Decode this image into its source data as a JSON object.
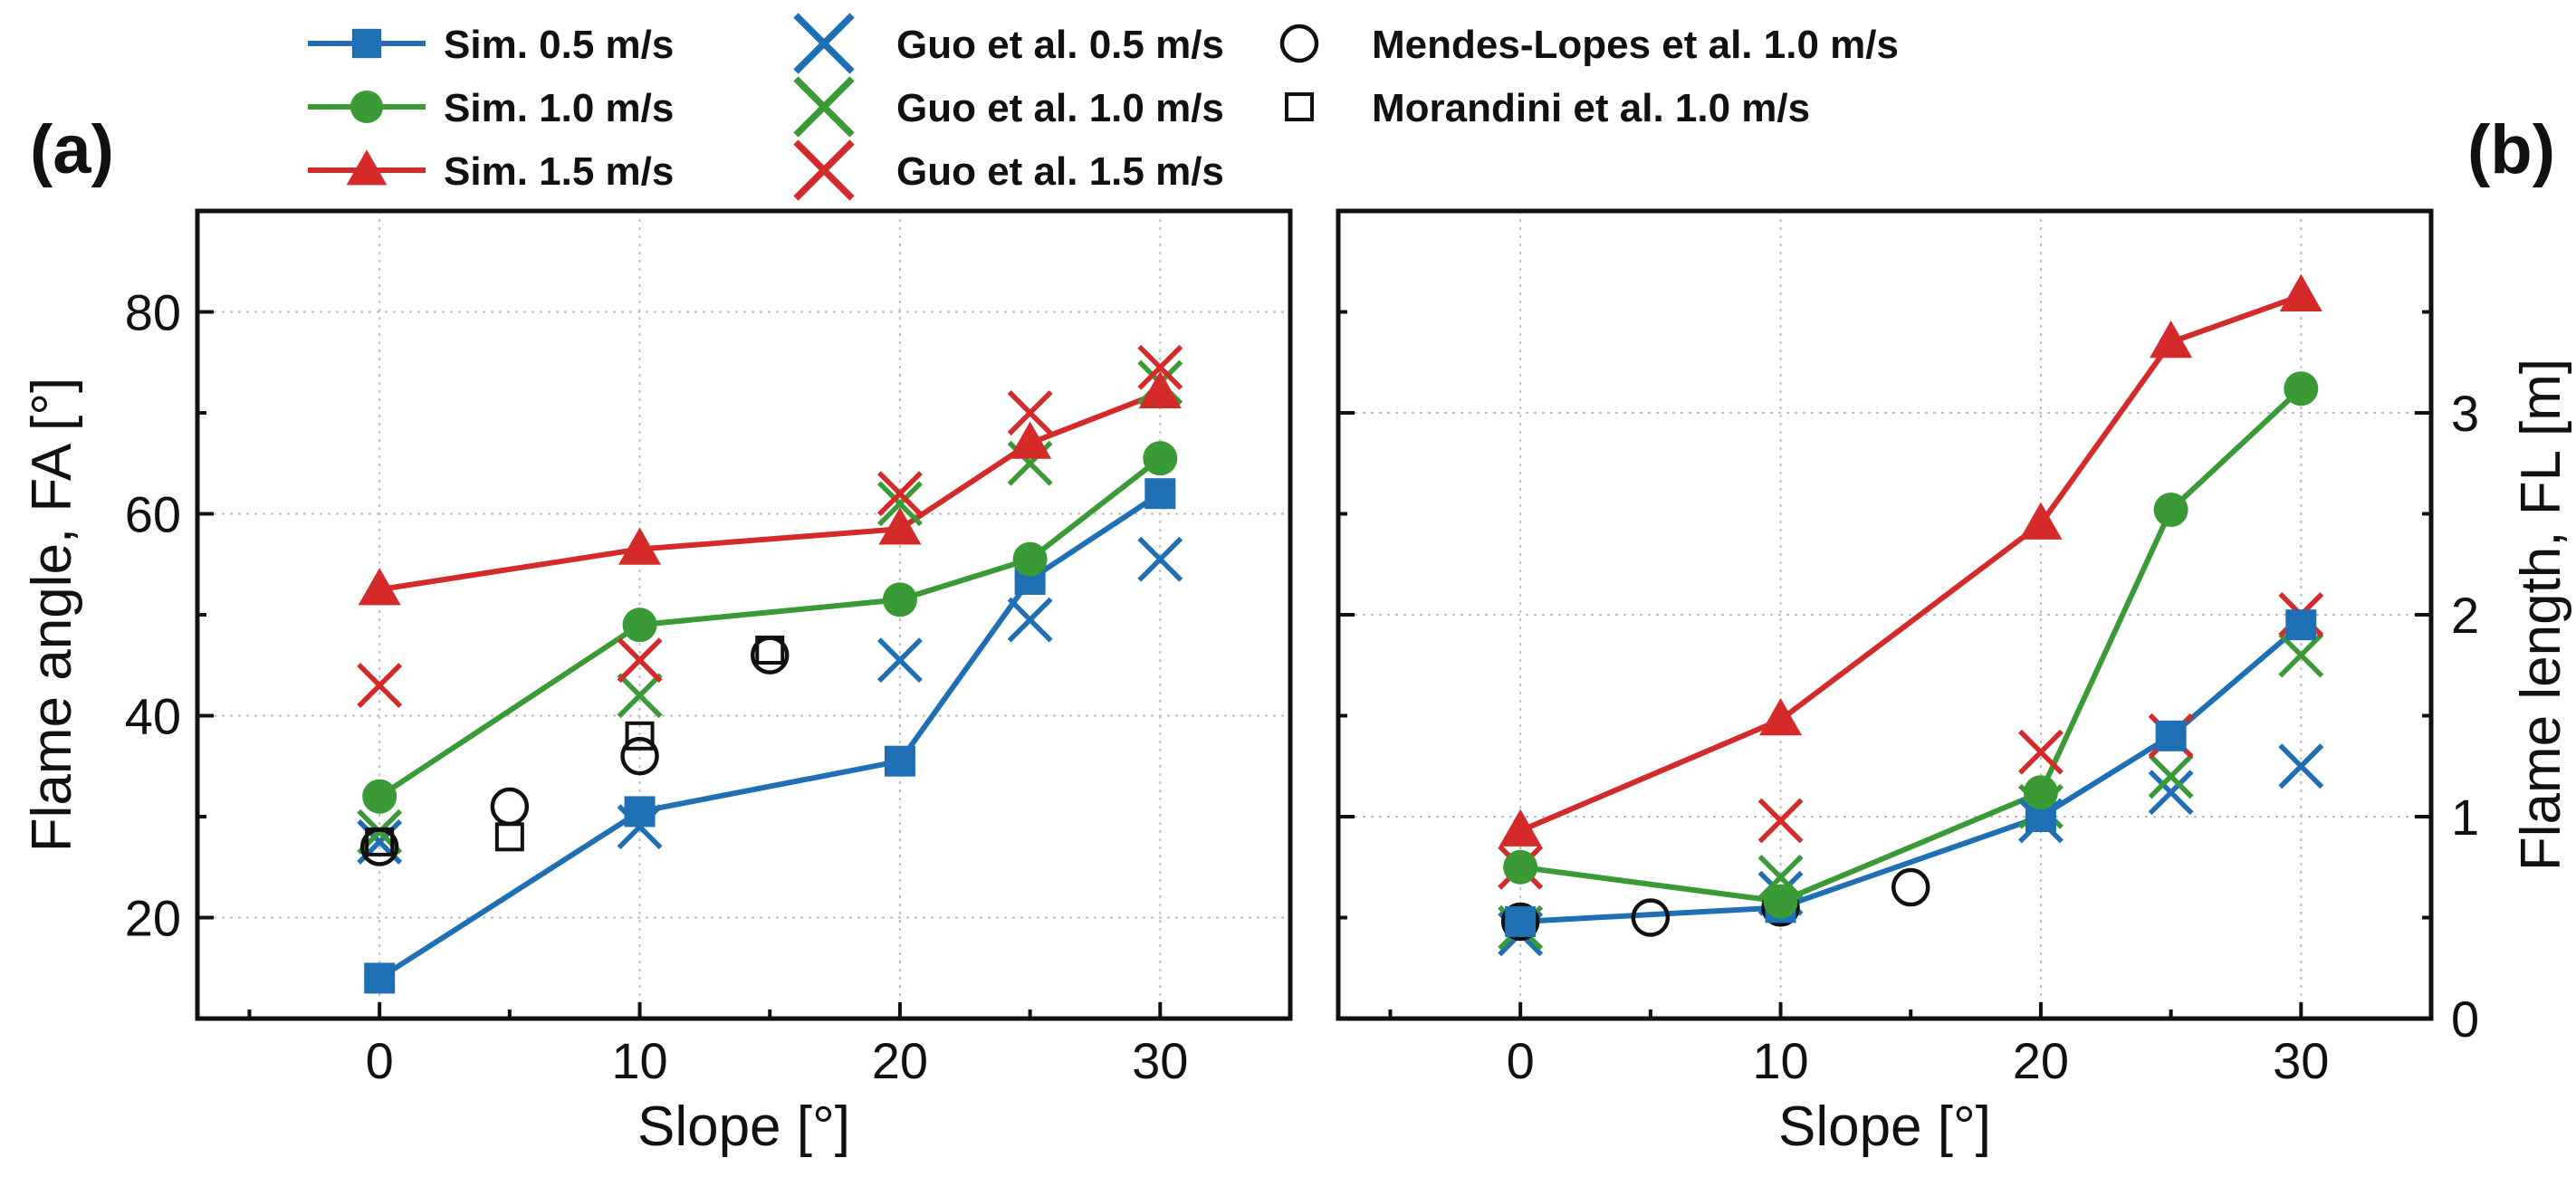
{
  "colors": {
    "blue": "#1f6fb4",
    "green": "#3a9a35",
    "red": "#d42a2a",
    "black": "#111111"
  },
  "legend": [
    {
      "label": "Sim. 0.5 m/s",
      "marker": "square",
      "color": "blue",
      "line": true
    },
    {
      "label": "Sim. 1.0 m/s",
      "marker": "circle",
      "color": "green",
      "line": true
    },
    {
      "label": "Sim. 1.5 m/s",
      "marker": "triangle",
      "color": "red",
      "line": true
    },
    {
      "label": "Guo et al.  0.5 m/s",
      "marker": "cross",
      "color": "blue",
      "line": false
    },
    {
      "label": "Guo et al. 1.0 m/s",
      "marker": "cross",
      "color": "green",
      "line": false
    },
    {
      "label": "Guo et al. 1.5 m/s",
      "marker": "cross",
      "color": "red",
      "line": false
    },
    {
      "label": "Mendes-Lopes et al. 1.0 m/s",
      "marker": "open-circle",
      "color": "black",
      "line": false
    },
    {
      "label": "Morandini et al. 1.0 m/s",
      "marker": "open-square",
      "color": "black",
      "line": false
    }
  ],
  "chart_data": [
    {
      "type": "line",
      "panel_label": "(a)",
      "xlabel": "Slope [°]",
      "ylabel": "Flame angle, FA [°]",
      "xlim": [
        -7,
        35
      ],
      "ylim": [
        10,
        90
      ],
      "xticks": [
        0,
        10,
        20,
        30
      ],
      "yticks": [
        20,
        40,
        60,
        80
      ],
      "y_axis_side": "left",
      "grid": true,
      "series": [
        {
          "name": "Sim. 0.5 m/s",
          "marker": "square",
          "color": "blue",
          "line": true,
          "x": [
            0,
            10,
            20,
            25,
            30
          ],
          "y": [
            14,
            30.5,
            35.5,
            53.5,
            62
          ]
        },
        {
          "name": "Sim. 1.0 m/s",
          "marker": "circle",
          "color": "green",
          "line": true,
          "x": [
            0,
            10,
            20,
            25,
            30
          ],
          "y": [
            32,
            49,
            51.5,
            55.5,
            65.5
          ]
        },
        {
          "name": "Sim. 1.5 m/s",
          "marker": "triangle",
          "color": "red",
          "line": true,
          "x": [
            0,
            10,
            20,
            25,
            30
          ],
          "y": [
            52.5,
            56.5,
            58.5,
            67,
            72
          ]
        },
        {
          "name": "Guo et al.  0.5 m/s",
          "marker": "cross",
          "color": "blue",
          "line": false,
          "x": [
            0,
            10,
            20,
            25,
            30
          ],
          "y": [
            27.5,
            29,
            45.5,
            49.5,
            55.5
          ]
        },
        {
          "name": "Guo et al. 1.0 m/s",
          "marker": "cross",
          "color": "green",
          "line": false,
          "x": [
            0,
            10,
            20,
            25,
            30
          ],
          "y": [
            28.5,
            42,
            61,
            65,
            73
          ]
        },
        {
          "name": "Guo et al. 1.5 m/s",
          "marker": "cross",
          "color": "red",
          "line": false,
          "x": [
            0,
            10,
            20,
            25,
            30
          ],
          "y": [
            43,
            45.5,
            62,
            70,
            74.5
          ]
        },
        {
          "name": "Mendes-Lopes et al. 1.0 m/s",
          "marker": "open-circle",
          "color": "black",
          "line": false,
          "x": [
            0,
            5,
            10,
            15
          ],
          "y": [
            27,
            31,
            36,
            46
          ]
        },
        {
          "name": "Morandini et al. 1.0 m/s",
          "marker": "open-square",
          "color": "black",
          "line": false,
          "x": [
            0,
            5,
            10,
            15
          ],
          "y": [
            27.5,
            28,
            38,
            46.5
          ]
        }
      ]
    },
    {
      "type": "line",
      "panel_label": "(b)",
      "xlabel": "Slope [°]",
      "ylabel": "Flame length, FL [m]",
      "xlim": [
        -7,
        35
      ],
      "ylim": [
        0,
        4
      ],
      "xticks": [
        0,
        10,
        20,
        30
      ],
      "yticks": [
        0,
        1,
        2,
        3
      ],
      "y_axis_side": "right",
      "grid": true,
      "series": [
        {
          "name": "Sim. 0.5 m/s",
          "marker": "square",
          "color": "blue",
          "line": true,
          "x": [
            0,
            10,
            20,
            25,
            30
          ],
          "y": [
            0.48,
            0.55,
            1.0,
            1.4,
            1.95
          ]
        },
        {
          "name": "Sim. 1.0 m/s",
          "marker": "circle",
          "color": "green",
          "line": true,
          "x": [
            0,
            10,
            20,
            25,
            30
          ],
          "y": [
            0.75,
            0.58,
            1.12,
            2.52,
            3.12
          ]
        },
        {
          "name": "Sim. 1.5 m/s",
          "marker": "triangle",
          "color": "red",
          "line": true,
          "x": [
            0,
            10,
            20,
            25,
            30
          ],
          "y": [
            0.93,
            1.48,
            2.45,
            3.35,
            3.58
          ]
        },
        {
          "name": "Guo et al.  0.5 m/s",
          "marker": "cross",
          "color": "blue",
          "line": false,
          "x": [
            0,
            10,
            20,
            25,
            30
          ],
          "y": [
            0.42,
            0.62,
            0.98,
            1.12,
            1.25
          ]
        },
        {
          "name": "Guo et al. 1.0 m/s",
          "marker": "cross",
          "color": "green",
          "line": false,
          "x": [
            0,
            10,
            20,
            25,
            30
          ],
          "y": [
            0.45,
            0.7,
            1.05,
            1.2,
            1.8
          ]
        },
        {
          "name": "Guo et al. 1.5 m/s",
          "marker": "cross",
          "color": "red",
          "line": false,
          "x": [
            0,
            10,
            20,
            25,
            30
          ],
          "y": [
            0.75,
            0.98,
            1.32,
            1.4,
            2.0
          ]
        },
        {
          "name": "Mendes-Lopes et al. 1.0 m/s",
          "marker": "open-circle",
          "color": "black",
          "line": false,
          "x": [
            0,
            5,
            10,
            15
          ],
          "y": [
            0.48,
            0.5,
            0.55,
            0.65
          ]
        }
      ]
    }
  ]
}
